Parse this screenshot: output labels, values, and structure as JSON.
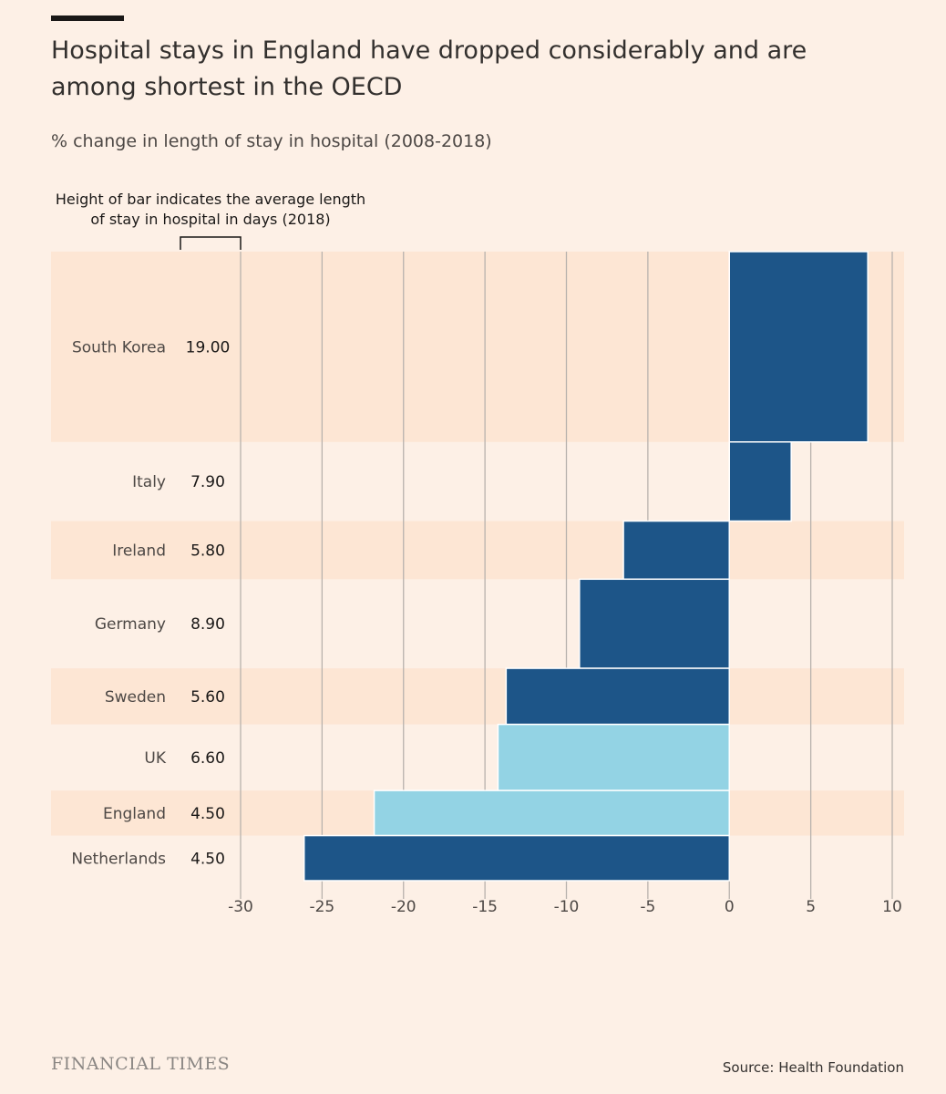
{
  "header": {
    "title": "Hospital stays in England have dropped considerably and are among shortest in the OECD",
    "subtitle": "% change in length of stay in hospital (2008-2018)"
  },
  "annotation": {
    "text": "Height of bar indicates the average length of stay in hospital in days (2018)"
  },
  "footer": {
    "brand": "FINANCIAL TIMES",
    "source": "Source: Health Foundation"
  },
  "colors": {
    "background": "#fdf0e6",
    "band": "#fde6d4",
    "dark_bar": "#1d5588",
    "light_bar": "#93d3e4",
    "grid": "#b8b2ad"
  },
  "chart_data": {
    "type": "bar",
    "orientation": "horizontal",
    "variable_width": true,
    "title": "Hospital stays in England have dropped considerably and are among shortest in the OECD",
    "subtitle": "% change in length of stay in hospital (2008-2018)",
    "xlabel": "",
    "ylabel": "",
    "xlim": [
      -30,
      10
    ],
    "xticks": [
      -30,
      -25,
      -20,
      -15,
      -10,
      -5,
      0,
      5,
      10
    ],
    "grid": true,
    "categories": [
      "South Korea",
      "Italy",
      "Ireland",
      "Germany",
      "Sweden",
      "UK",
      "England",
      "Netherlands"
    ],
    "values": [
      8.5,
      3.8,
      -6.5,
      -9.2,
      -13.7,
      -14.2,
      -21.8,
      -26.1
    ],
    "stay_days": [
      19.0,
      7.9,
      5.8,
      8.9,
      5.6,
      6.6,
      4.5,
      4.5
    ],
    "stay_labels": [
      "19.00",
      "7.90",
      "5.80",
      "8.90",
      "5.60",
      "6.60",
      "4.50",
      "4.50"
    ],
    "highlight": [
      "UK",
      "England"
    ]
  }
}
